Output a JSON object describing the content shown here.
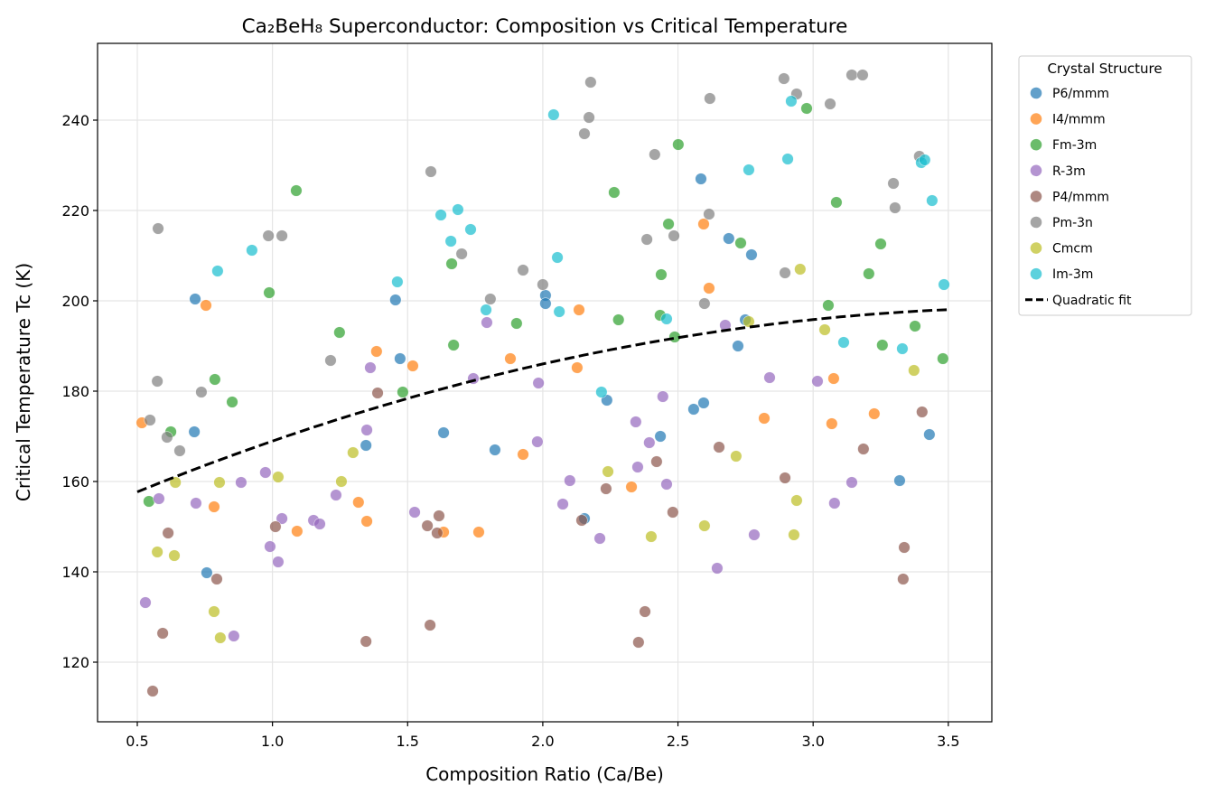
{
  "chart_data": {
    "type": "scatter",
    "title": "Ca₂BeH₈ Superconductor: Composition vs Critical Temperature",
    "xlabel": "Composition Ratio (Ca/Be)",
    "ylabel": "Critical Temperature Tc (K)",
    "xlim": [
      0.353,
      3.661
    ],
    "ylim": [
      106.8,
      257
    ],
    "xticks": [
      0.5,
      1.0,
      1.5,
      2.0,
      2.5,
      3.0,
      3.5
    ],
    "xtick_labels": [
      "0.5",
      "1.0",
      "1.5",
      "2.0",
      "2.5",
      "3.0",
      "3.5"
    ],
    "yticks": [
      120,
      140,
      160,
      180,
      200,
      220,
      240
    ],
    "ytick_labels": [
      "120",
      "140",
      "160",
      "180",
      "200",
      "220",
      "240"
    ],
    "grid": true,
    "legend": {
      "title": "Crystal Structure",
      "placement": "outside-top-right"
    },
    "series": [
      {
        "name": "P6/mmm",
        "color": "#1f77b4",
        "points": [
          [
            0.714,
            200.4
          ],
          [
            0.711,
            171
          ],
          [
            0.757,
            139.8
          ],
          [
            1.455,
            200.2
          ],
          [
            1.472,
            187.2
          ],
          [
            2.01,
            201.2
          ],
          [
            2.01,
            199.4
          ],
          [
            1.346,
            168
          ],
          [
            1.633,
            170.8
          ],
          [
            1.823,
            167
          ],
          [
            2.585,
            227
          ],
          [
            2.688,
            213.8
          ],
          [
            2.772,
            210.2
          ],
          [
            2.749,
            195.8
          ],
          [
            2.722,
            190
          ],
          [
            2.237,
            178
          ],
          [
            2.558,
            176
          ],
          [
            2.595,
            177.4
          ],
          [
            2.435,
            170
          ],
          [
            3.43,
            170.4
          ],
          [
            3.32,
            160.2
          ],
          [
            2.154,
            151.8
          ]
        ]
      },
      {
        "name": "I4/mmm",
        "color": "#ff7f0e",
        "points": [
          [
            0.754,
            199
          ],
          [
            1.385,
            188.8
          ],
          [
            1.519,
            185.6
          ],
          [
            1.88,
            187.2
          ],
          [
            0.517,
            173
          ],
          [
            1.927,
            166
          ],
          [
            0.784,
            154.4
          ],
          [
            1.318,
            155.4
          ],
          [
            1.349,
            151.2
          ],
          [
            1.633,
            148.8
          ],
          [
            1.763,
            148.8
          ],
          [
            1.091,
            149
          ],
          [
            2.595,
            217
          ],
          [
            2.615,
            202.8
          ],
          [
            2.134,
            198
          ],
          [
            2.127,
            185.2
          ],
          [
            3.076,
            182.8
          ],
          [
            2.819,
            174
          ],
          [
            3.069,
            172.8
          ],
          [
            3.226,
            175
          ],
          [
            2.328,
            158.8
          ]
        ]
      },
      {
        "name": "Fm-3m",
        "color": "#2ca02c",
        "points": [
          [
            1.088,
            224.4
          ],
          [
            0.988,
            201.8
          ],
          [
            1.663,
            208.2
          ],
          [
            1.903,
            195
          ],
          [
            1.248,
            193
          ],
          [
            1.67,
            190.2
          ],
          [
            0.787,
            182.6
          ],
          [
            0.851,
            177.6
          ],
          [
            0.624,
            171
          ],
          [
            1.482,
            179.8
          ],
          [
            0.543,
            155.6
          ],
          [
            2.976,
            242.6
          ],
          [
            2.501,
            234.6
          ],
          [
            3.086,
            221.8
          ],
          [
            2.264,
            224
          ],
          [
            2.465,
            217
          ],
          [
            2.732,
            212.8
          ],
          [
            3.25,
            212.6
          ],
          [
            3.206,
            206
          ],
          [
            2.438,
            205.8
          ],
          [
            2.28,
            195.8
          ],
          [
            2.434,
            196.8
          ],
          [
            2.488,
            192
          ],
          [
            3.056,
            199
          ],
          [
            3.256,
            190.2
          ],
          [
            3.377,
            194.4
          ],
          [
            3.48,
            187.2
          ]
        ]
      },
      {
        "name": "R-3m",
        "color": "#9467bd",
        "points": [
          [
            1.793,
            195.2
          ],
          [
            1.362,
            185.2
          ],
          [
            1.743,
            182.8
          ],
          [
            1.984,
            181.8
          ],
          [
            1.349,
            171.4
          ],
          [
            1.98,
            168.8
          ],
          [
            0.884,
            159.8
          ],
          [
            0.974,
            162
          ],
          [
            0.58,
            156.2
          ],
          [
            0.717,
            155.2
          ],
          [
            1.235,
            157
          ],
          [
            1.526,
            153.2
          ],
          [
            1.035,
            151.8
          ],
          [
            1.152,
            151.4
          ],
          [
            1.175,
            150.6
          ],
          [
            0.991,
            145.6
          ],
          [
            1.021,
            142.2
          ],
          [
            0.53,
            133.2
          ],
          [
            0.857,
            125.8
          ],
          [
            2.675,
            194.6
          ],
          [
            2.839,
            183
          ],
          [
            3.016,
            182.2
          ],
          [
            2.444,
            178.8
          ],
          [
            2.344,
            173.2
          ],
          [
            2.394,
            168.6
          ],
          [
            2.351,
            163.2
          ],
          [
            2.1,
            160.2
          ],
          [
            2.458,
            159.4
          ],
          [
            3.143,
            159.8
          ],
          [
            2.074,
            155
          ],
          [
            3.079,
            155.2
          ],
          [
            2.211,
            147.4
          ],
          [
            2.782,
            148.2
          ],
          [
            2.645,
            140.8
          ]
        ]
      },
      {
        "name": "P4/mmm",
        "color": "#8c564b",
        "points": [
          [
            1.389,
            179.6
          ],
          [
            1.616,
            152.4
          ],
          [
            1.573,
            150.2
          ],
          [
            1.609,
            148.6
          ],
          [
            0.614,
            148.6
          ],
          [
            1.011,
            150
          ],
          [
            0.794,
            138.4
          ],
          [
            0.594,
            126.4
          ],
          [
            1.583,
            128.2
          ],
          [
            1.346,
            124.6
          ],
          [
            0.557,
            113.6
          ],
          [
            3.403,
            175.4
          ],
          [
            2.652,
            167.6
          ],
          [
            3.186,
            167.2
          ],
          [
            2.421,
            164.4
          ],
          [
            2.234,
            158.4
          ],
          [
            2.896,
            160.8
          ],
          [
            2.144,
            151.4
          ],
          [
            2.481,
            153.2
          ],
          [
            3.337,
            145.4
          ],
          [
            3.333,
            138.4
          ],
          [
            2.378,
            131.2
          ],
          [
            2.354,
            124.4
          ]
        ]
      },
      {
        "name": "Pm-3n",
        "color": "#7f7f7f",
        "points": [
          [
            0.577,
            216
          ],
          [
            0.985,
            214.4
          ],
          [
            1.035,
            214.4
          ],
          [
            1.586,
            228.6
          ],
          [
            1.7,
            210.4
          ],
          [
            1.927,
            206.8
          ],
          [
            1.806,
            200.4
          ],
          [
            1.215,
            186.8
          ],
          [
            2.0,
            203.6
          ],
          [
            0.574,
            182.2
          ],
          [
            0.737,
            179.8
          ],
          [
            0.547,
            173.6
          ],
          [
            0.61,
            169.8
          ],
          [
            0.657,
            166.8
          ],
          [
            2.177,
            248.4
          ],
          [
            2.171,
            240.6
          ],
          [
            2.154,
            237
          ],
          [
            2.618,
            244.8
          ],
          [
            2.892,
            249.2
          ],
          [
            2.939,
            245.8
          ],
          [
            3.063,
            243.6
          ],
          [
            3.143,
            250
          ],
          [
            3.183,
            250
          ],
          [
            2.414,
            232.4
          ],
          [
            3.393,
            232
          ],
          [
            3.297,
            226
          ],
          [
            3.303,
            220.6
          ],
          [
            2.615,
            219.2
          ],
          [
            2.385,
            213.6
          ],
          [
            2.485,
            214.4
          ],
          [
            2.896,
            206.2
          ],
          [
            2.598,
            199.4
          ]
        ]
      },
      {
        "name": "Cmcm",
        "color": "#bcbd22",
        "points": [
          [
            1.298,
            166.4
          ],
          [
            0.641,
            159.8
          ],
          [
            0.804,
            159.8
          ],
          [
            1.021,
            161
          ],
          [
            1.255,
            160
          ],
          [
            0.574,
            144.4
          ],
          [
            0.637,
            143.6
          ],
          [
            0.784,
            131.2
          ],
          [
            0.807,
            125.4
          ],
          [
            2.952,
            207
          ],
          [
            2.762,
            195.4
          ],
          [
            3.043,
            193.6
          ],
          [
            3.373,
            184.6
          ],
          [
            2.715,
            165.6
          ],
          [
            2.241,
            162.2
          ],
          [
            2.939,
            155.8
          ],
          [
            2.401,
            147.8
          ],
          [
            2.598,
            150.2
          ],
          [
            2.929,
            148.2
          ]
        ]
      },
      {
        "name": "Im-3m",
        "color": "#17becf",
        "points": [
          [
            0.924,
            211.2
          ],
          [
            0.797,
            206.6
          ],
          [
            1.623,
            219
          ],
          [
            1.686,
            220.2
          ],
          [
            1.733,
            215.8
          ],
          [
            1.66,
            213.2
          ],
          [
            1.462,
            204.2
          ],
          [
            1.79,
            198
          ],
          [
            2.04,
            241.2
          ],
          [
            2.762,
            229
          ],
          [
            2.906,
            231.4
          ],
          [
            2.919,
            244.2
          ],
          [
            3.4,
            230.6
          ],
          [
            3.413,
            231.2
          ],
          [
            3.44,
            222.2
          ],
          [
            2.054,
            209.6
          ],
          [
            3.484,
            203.6
          ],
          [
            2.061,
            197.6
          ],
          [
            2.458,
            196
          ],
          [
            3.113,
            190.8
          ],
          [
            3.33,
            189.4
          ],
          [
            2.217,
            179.8
          ]
        ]
      }
    ],
    "fit": {
      "name": "Quadratic fit",
      "color": "#000000",
      "style": "dashed",
      "coefficients": [
        144.64,
        27.93,
        -3.62
      ],
      "x_range": [
        0.5,
        3.5
      ]
    }
  }
}
